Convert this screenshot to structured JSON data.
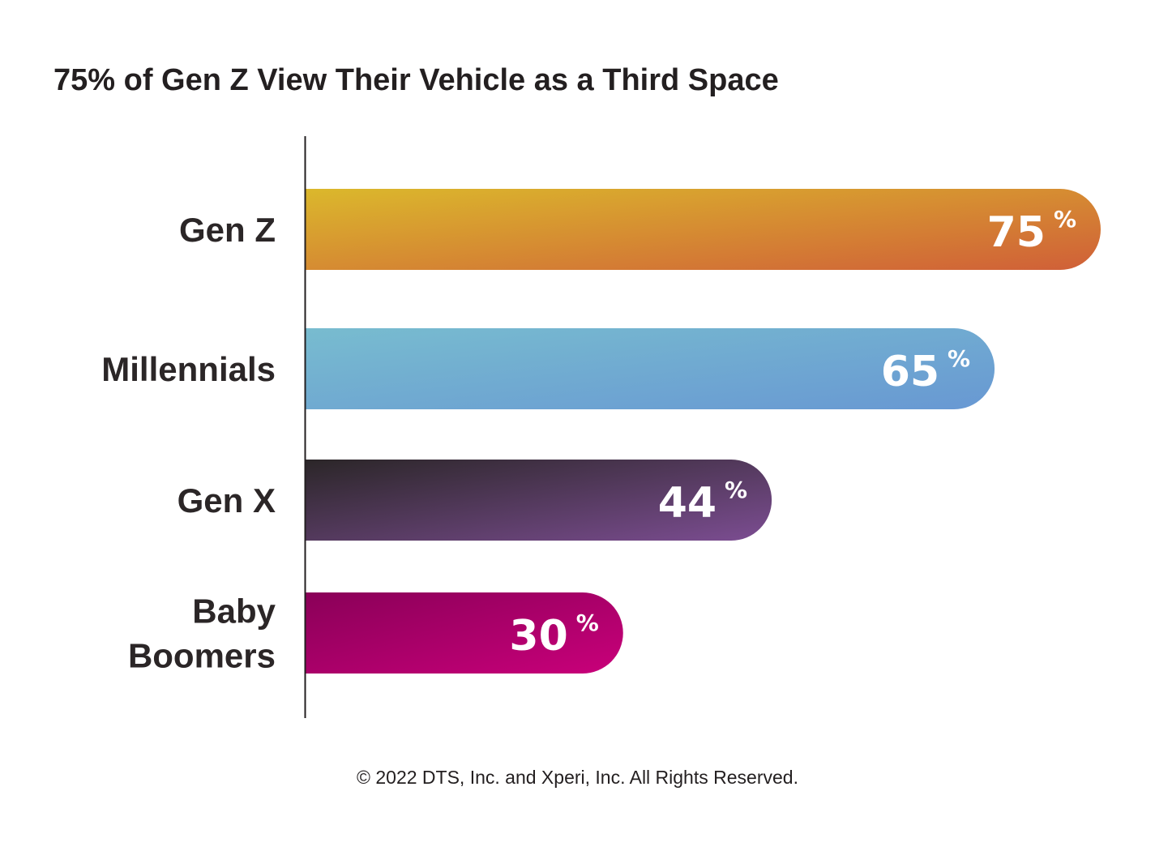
{
  "chart_data": {
    "type": "bar",
    "orientation": "horizontal",
    "title": "75% of Gen Z View Their Vehicle as a Third Space",
    "categories": [
      [
        "Gen Z"
      ],
      [
        "Millennials"
      ],
      [
        "Gen X"
      ],
      [
        "Baby",
        "Boomers"
      ]
    ],
    "values": [
      75,
      65,
      44,
      30
    ],
    "value_labels": [
      "75",
      "65",
      "44",
      "30"
    ],
    "value_suffix": "%",
    "xlim": [
      0,
      75
    ],
    "grid": false,
    "legend": "none",
    "bar_gradients": [
      [
        "#dbb82c",
        "#d05f38"
      ],
      [
        "#78bccf",
        "#6898d3"
      ],
      [
        "#2b2628",
        "#7c4d92"
      ],
      [
        "#8a0058",
        "#c9007a"
      ]
    ]
  },
  "footer": {
    "text": "© 2022 DTS, Inc. and Xperi, Inc. All Rights Reserved."
  }
}
